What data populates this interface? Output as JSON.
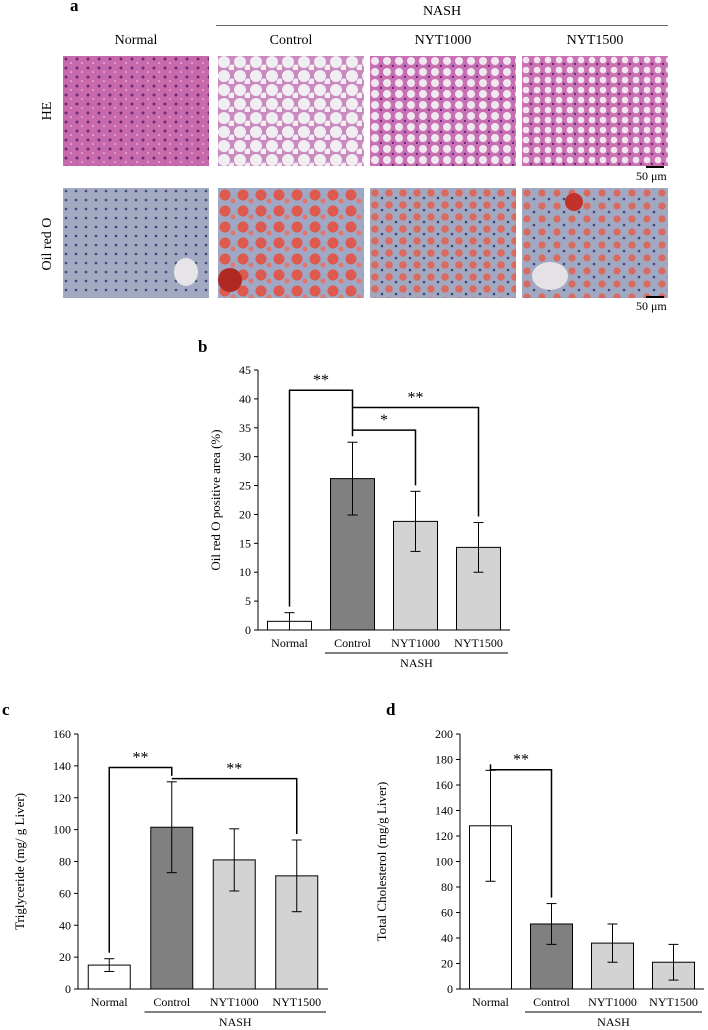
{
  "panel_a": {
    "label": "a",
    "group_label": "NASH",
    "columns": [
      "Normal",
      "Control",
      "NYT1000",
      "NYT1500"
    ],
    "rows": [
      "HE",
      "Oil red O"
    ],
    "scale_bar": "50 μm"
  },
  "chart_data": [
    {
      "id": "b",
      "panel_label": "b",
      "type": "bar",
      "categories": [
        "Normal",
        "Control",
        "NYT1000",
        "NYT1500"
      ],
      "values": [
        1.5,
        26.2,
        18.8,
        14.3
      ],
      "errors": [
        1.5,
        6.3,
        5.2,
        4.3
      ],
      "bar_colors": [
        "#ffffff",
        "#808080",
        "#d3d3d3",
        "#d3d3d3"
      ],
      "ylabel": "Oil red O positive area (%)",
      "ylim": [
        0,
        45
      ],
      "yticks": [
        0,
        5,
        10,
        15,
        20,
        25,
        30,
        35,
        40,
        45
      ],
      "group_label": "NASH",
      "group_categories": [
        1,
        3
      ],
      "significance": [
        {
          "from": 0,
          "to": 1,
          "label": "**",
          "level": 41.5
        },
        {
          "from": 1,
          "to": 2,
          "label": "*",
          "level": 34.6
        },
        {
          "from": 1,
          "to": 3,
          "label": "**",
          "level": 38.5
        }
      ]
    },
    {
      "id": "c",
      "panel_label": "c",
      "type": "bar",
      "categories": [
        "Normal",
        "Control",
        "NYT1000",
        "NYT1500"
      ],
      "values": [
        15,
        101.5,
        81,
        71
      ],
      "errors": [
        4,
        28.5,
        19.5,
        22.5
      ],
      "bar_colors": [
        "#ffffff",
        "#808080",
        "#d3d3d3",
        "#d3d3d3"
      ],
      "ylabel": "Triglyceride (mg/ g Liver)",
      "ylim": [
        0,
        160
      ],
      "yticks": [
        0,
        20,
        40,
        60,
        80,
        100,
        120,
        140,
        160
      ],
      "group_label": "NASH",
      "group_categories": [
        1,
        3
      ],
      "significance": [
        {
          "from": 0,
          "to": 1,
          "label": "**",
          "level": 139
        },
        {
          "from": 1,
          "to": 3,
          "label": "**",
          "level": 132
        }
      ]
    },
    {
      "id": "d",
      "panel_label": "d",
      "type": "bar",
      "categories": [
        "Normal",
        "Control",
        "NYT1000",
        "NYT1500"
      ],
      "values": [
        128,
        51,
        36,
        21
      ],
      "errors": [
        43.5,
        16,
        15,
        14
      ],
      "bar_colors": [
        "#ffffff",
        "#808080",
        "#d3d3d3",
        "#d3d3d3"
      ],
      "ylabel": "Total Cholesterol (mg/g Liver)",
      "ylim": [
        0,
        200
      ],
      "yticks": [
        0,
        20,
        40,
        60,
        80,
        100,
        120,
        140,
        160,
        180,
        200
      ],
      "group_label": "NASH",
      "group_categories": [
        1,
        3
      ],
      "significance": [
        {
          "from": 0,
          "to": 1,
          "label": "**",
          "level": 172
        }
      ]
    }
  ]
}
